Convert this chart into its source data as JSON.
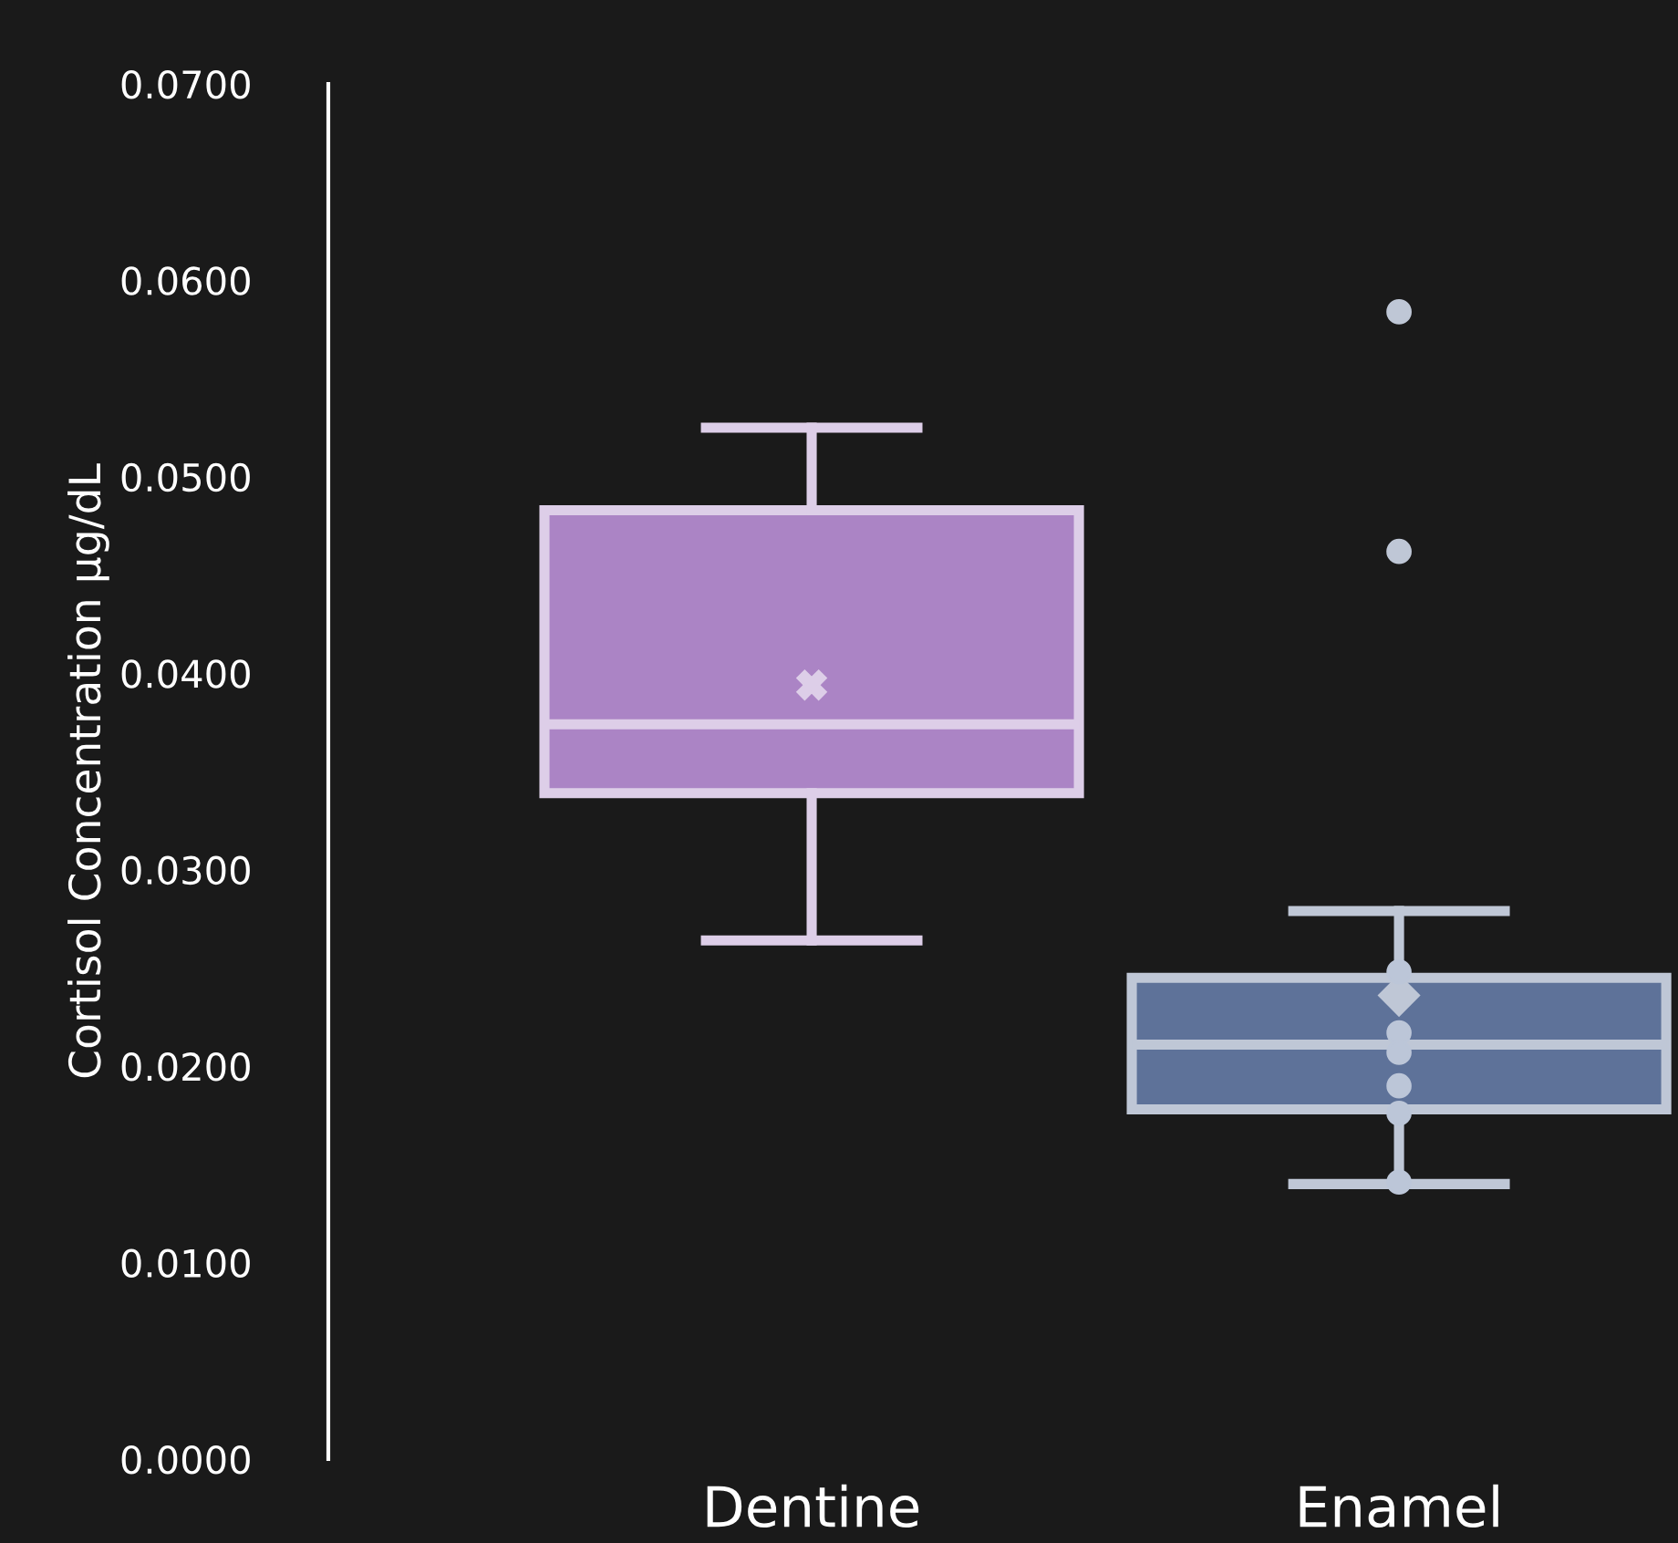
{
  "chart_data": {
    "type": "box",
    "ylabel": "Cortisol Concentration µg/dL",
    "categories": [
      "Dentine",
      "Enamel"
    ],
    "series": [
      {
        "color": "#ab84c5",
        "marker": "cross",
        "boxes": [
          {
            "low": 0.0264,
            "q1": 0.0339,
            "median": 0.0374,
            "q3": 0.0483,
            "high": 0.0525,
            "mean": 0.0394
          },
          null
        ]
      },
      {
        "color": "#5e7299",
        "marker": "diamond",
        "boxes": [
          null,
          {
            "low": 0.014,
            "q1": 0.0178,
            "median": 0.0211,
            "q3": 0.0245,
            "high": 0.0279,
            "mean": 0.0236,
            "outliers": [
              0.0584,
              0.0462
            ]
          }
        ]
      },
      {
        "type": "scatter",
        "color": "#bcc6d8",
        "marker": "circle",
        "x": [
          "Enamel",
          "Enamel",
          "Enamel",
          "Enamel",
          "Enamel",
          "Enamel"
        ],
        "values": [
          0.0248,
          0.0217,
          0.0207,
          0.019,
          0.0176,
          0.0141
        ]
      }
    ],
    "ylim": [
      0,
      0.07
    ],
    "yticks": [
      {
        "value": 0,
        "label": "0.0000"
      },
      {
        "value": 0.01,
        "label": "0.0100"
      },
      {
        "value": 0.02,
        "label": "0.0200"
      },
      {
        "value": 0.03,
        "label": "0.0300"
      },
      {
        "value": 0.04,
        "label": "0.0400"
      },
      {
        "value": 0.05,
        "label": "0.0500"
      },
      {
        "value": 0.06,
        "label": "0.0600"
      },
      {
        "value": 0.07,
        "label": "0.0700"
      }
    ],
    "grid": false,
    "legend": false
  }
}
